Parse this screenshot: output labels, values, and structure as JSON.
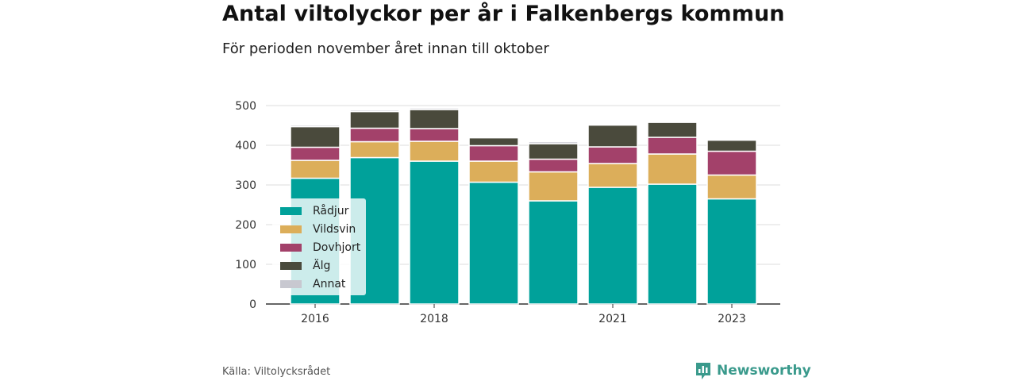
{
  "title": "Antal viltolyckor per år i Falkenbergs kommun",
  "subtitle": "För perioden november året innan till oktober",
  "source": "Källa: Viltolycksrådet",
  "brand": "Newsworthy",
  "colors": {
    "Rådjur": "#00a19a",
    "Vildsvin": "#dcae5a",
    "Dovhjort": "#a3416a",
    "Älg": "#4a4a3c",
    "Annat": "#c8c8d0",
    "brand": "#3a9a8c"
  },
  "chart_data": {
    "type": "bar",
    "stacked": true,
    "categories": [
      "2016",
      "2017",
      "2018",
      "2019",
      "2020",
      "2021",
      "2022",
      "2023"
    ],
    "x_tick_labels": [
      "2016",
      "",
      "2018",
      "",
      "",
      "2021",
      "",
      "2023"
    ],
    "series": [
      {
        "name": "Rådjur",
        "values": [
          317,
          369,
          360,
          307,
          260,
          294,
          302,
          265
        ]
      },
      {
        "name": "Vildsvin",
        "values": [
          45,
          40,
          50,
          53,
          73,
          60,
          76,
          60
        ]
      },
      {
        "name": "Dovhjort",
        "values": [
          33,
          34,
          32,
          39,
          32,
          42,
          42,
          60
        ]
      },
      {
        "name": "Älg",
        "values": [
          52,
          42,
          48,
          20,
          39,
          55,
          38,
          28
        ]
      },
      {
        "name": "Annat",
        "values": [
          4,
          4,
          4,
          1,
          5,
          1,
          2,
          3
        ]
      }
    ],
    "ylim": [
      0,
      500
    ],
    "yticks": [
      0,
      100,
      200,
      300,
      400,
      500
    ],
    "xlabel": "",
    "ylabel": "",
    "grid": true,
    "legend_position": "bottom-left"
  }
}
